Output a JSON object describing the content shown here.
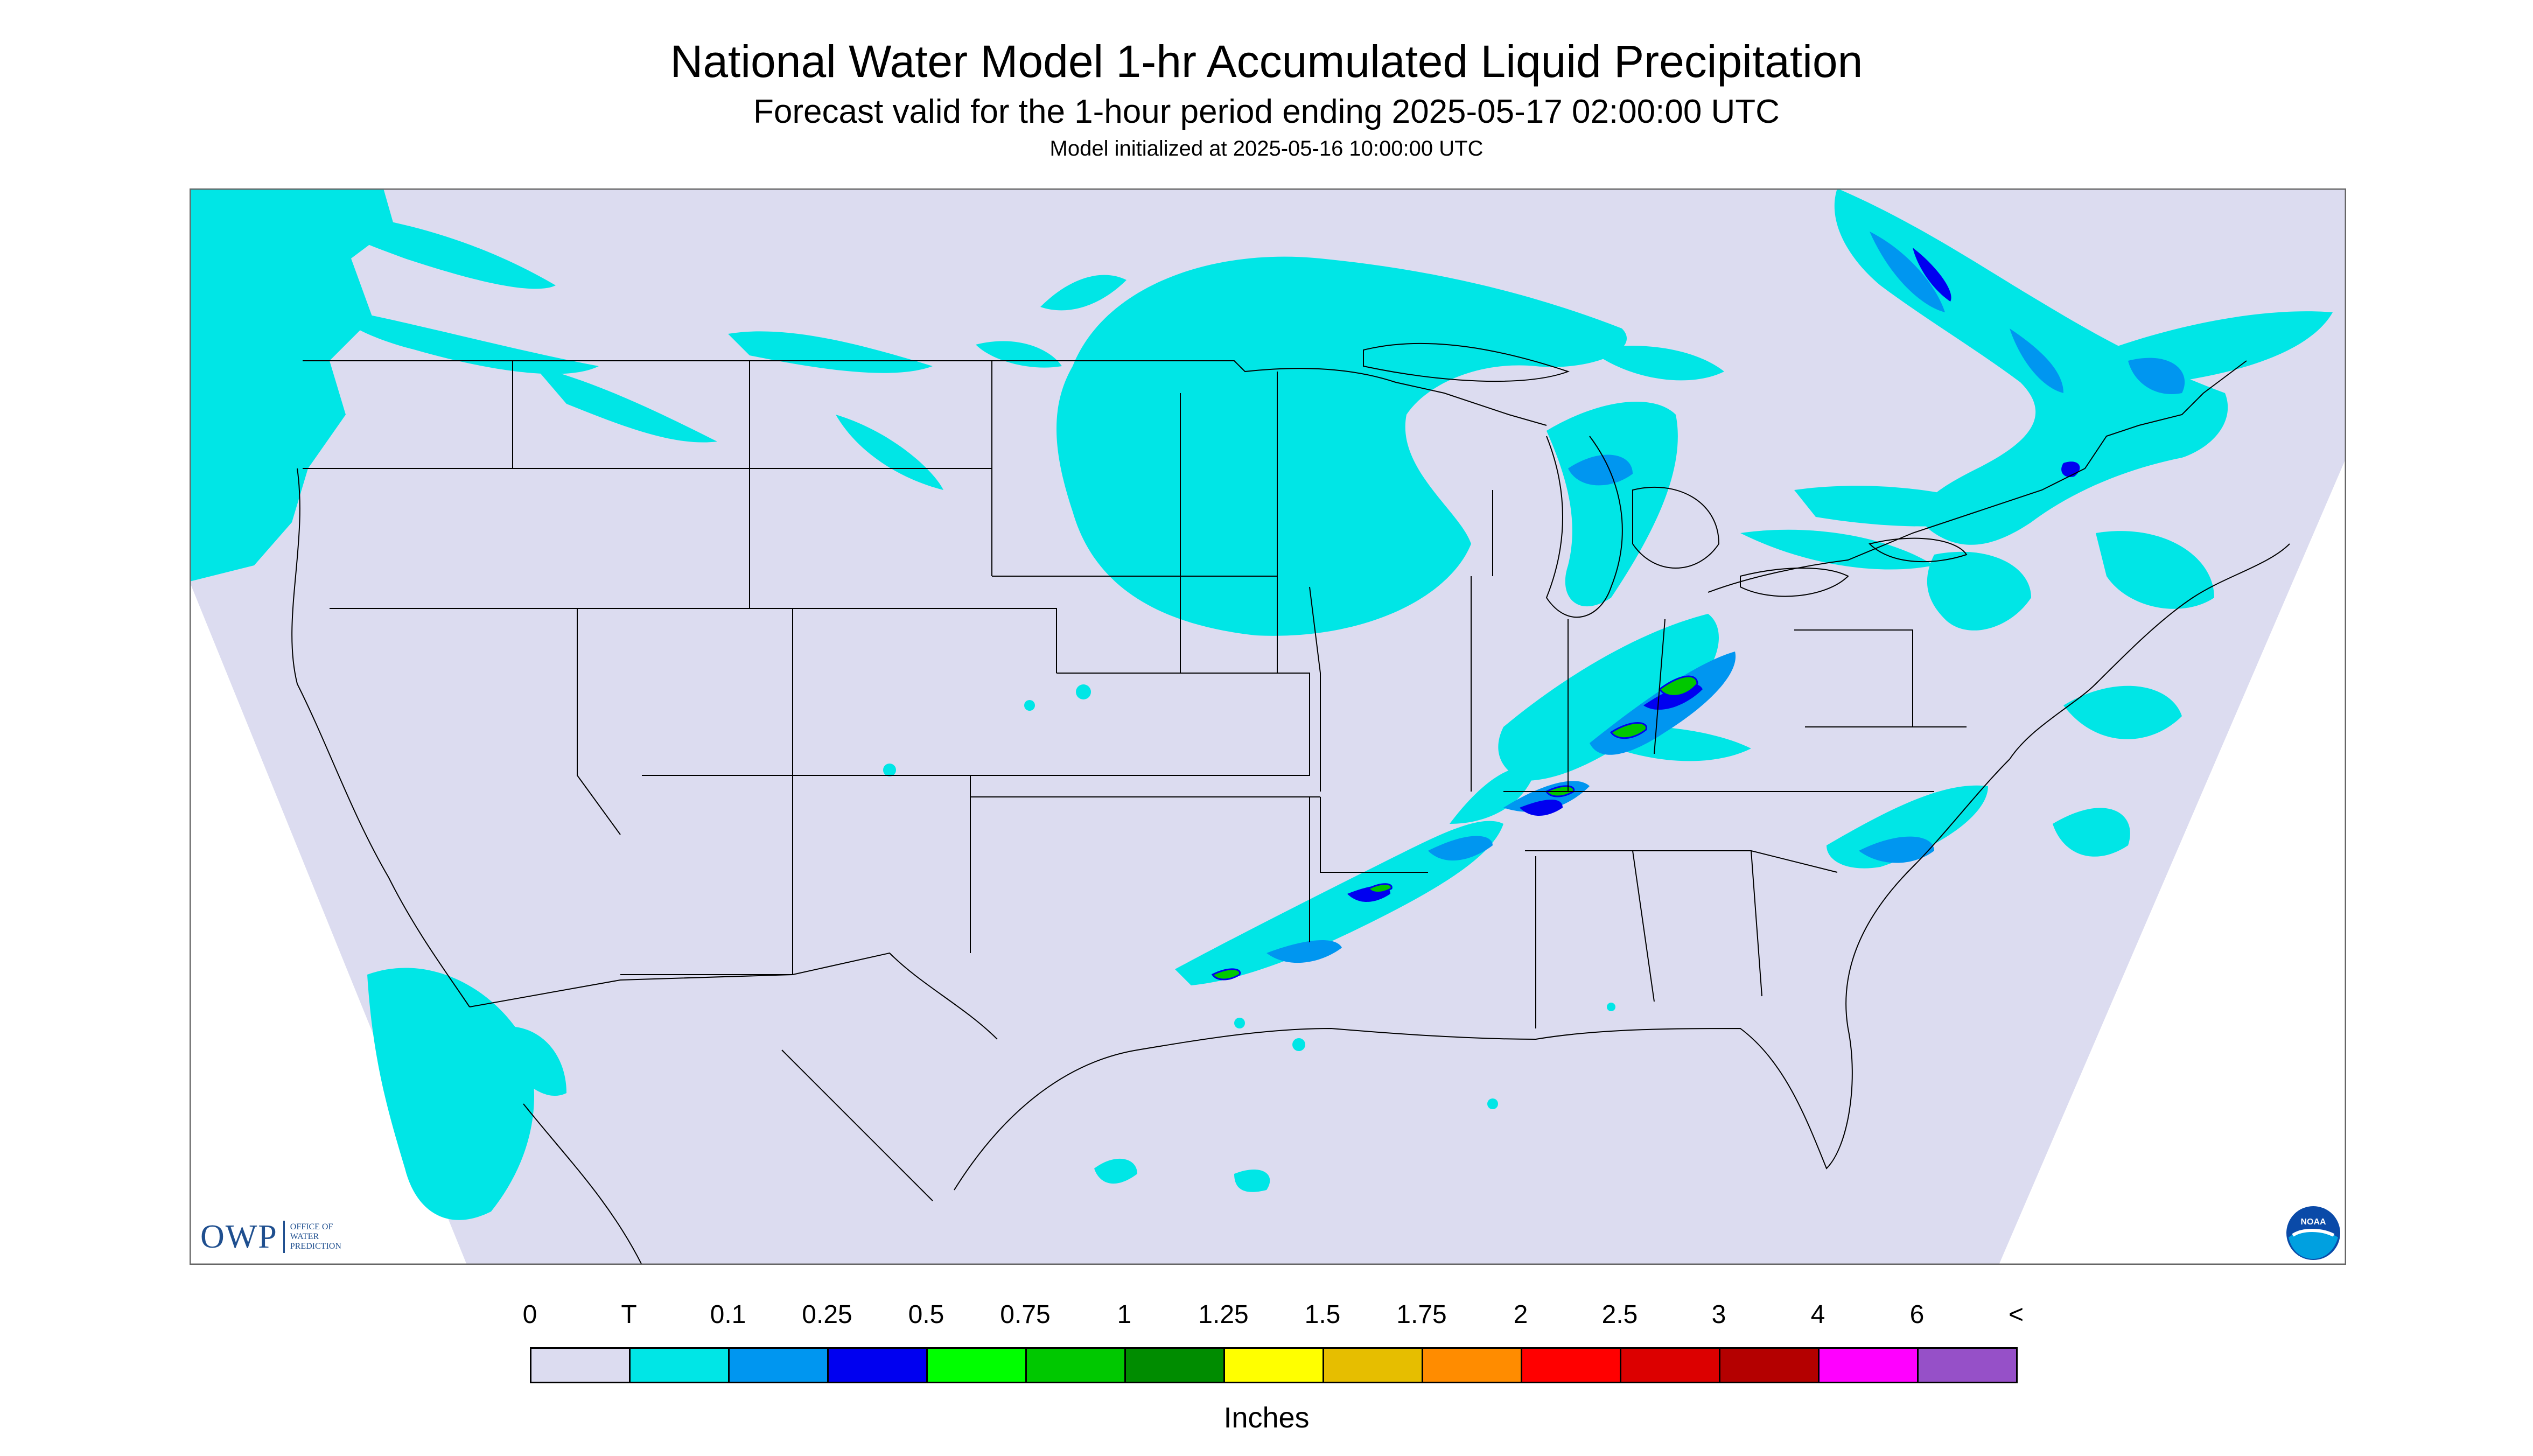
{
  "title": "National Water Model 1-hr Accumulated Liquid Precipitation",
  "subtitle": "Forecast valid for the 1-hour period ending 2025-05-17 02:00:00 UTC",
  "model_init": "Model initialized at 2025-05-16 10:00:00 UTC",
  "legend": {
    "units": "Inches",
    "labels": [
      "0",
      "T",
      "0.1",
      "0.25",
      "0.5",
      "0.75",
      "1",
      "1.25",
      "1.5",
      "1.75",
      "2",
      "2.5",
      "3",
      "4",
      "6",
      "<"
    ],
    "colors": [
      "#dcdcf0",
      "#00e6e6",
      "#0096f0",
      "#0000f0",
      "#00ff00",
      "#00c800",
      "#008c00",
      "#ffff00",
      "#e6be00",
      "#ff8c00",
      "#ff0000",
      "#dc0000",
      "#b40000",
      "#ff00ff",
      "#9650c8"
    ]
  },
  "logos": {
    "owp_text": "OWP",
    "owp_sub": [
      "OFFICE OF",
      "WATER",
      "PREDICTION"
    ],
    "noaa_text": "NOAA"
  },
  "colors": {
    "background_map": "#dcdcf0",
    "trace": "#00e6e6",
    "light": "#0096f0",
    "moderate": "#0000f0",
    "heavy_green": "#00c800"
  }
}
